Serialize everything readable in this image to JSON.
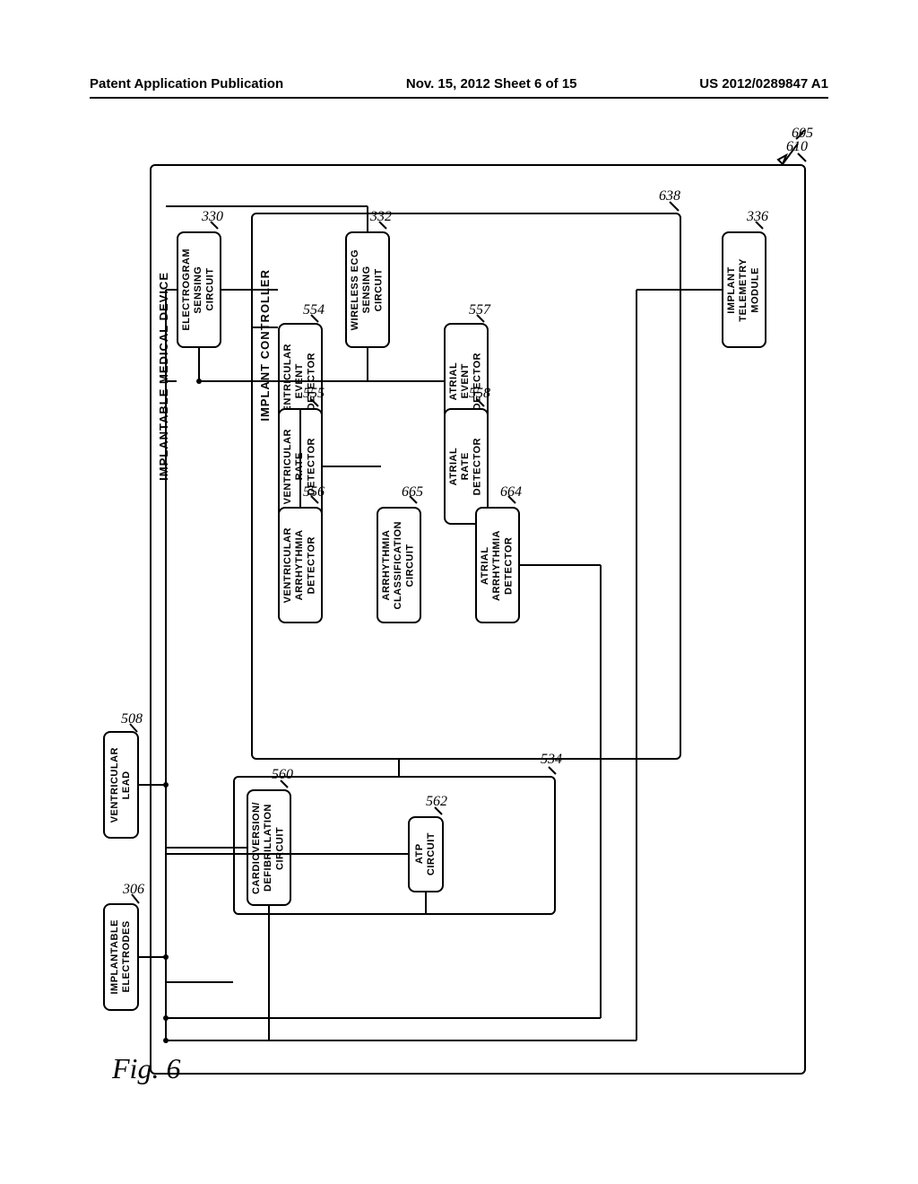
{
  "header": {
    "left": "Patent Application Publication",
    "center": "Nov. 15, 2012  Sheet 6 of 15",
    "right": "US 2012/0289847 A1"
  },
  "device_title": "IMPLANTABLE MEDICAL DEVICE",
  "controller_title": "IMPLANT CONTROLLER",
  "figure_label": "Fig. 6",
  "outer_ref": "605",
  "device_ref": "610",
  "controller_ref": "638",
  "boxes": {
    "ventricular_lead": {
      "label": "VENTRICULAR\nLEAD",
      "ref": "508"
    },
    "implantable_electrodes": {
      "label": "IMPLANTABLE\nELECTRODES",
      "ref": "306"
    },
    "electrogram_sensing": {
      "label": "ELECTROGRAM\nSENSING\nCIRCUIT",
      "ref": "330"
    },
    "wireless_ecg": {
      "label": "WIRELESS ECG\nSENSING\nCIRCUIT",
      "ref": "332"
    },
    "cardioversion": {
      "label": "CARDIOVERSION/\nDEFIBRILLATION\nCIRCUIT",
      "ref": "560"
    },
    "ventricular_event": {
      "label": "VENTRICULAR\nEVENT\nDETECTOR",
      "ref": "554"
    },
    "atrial_event": {
      "label": "ATRIAL\nEVENT\nDETECTOR",
      "ref": "557"
    },
    "atp_circuit": {
      "label": "ATP\nCIRCUIT",
      "ref": "562"
    },
    "ventricular_rate": {
      "label": "VENTRICULAR\nRATE\nDETECTOR",
      "ref": "555"
    },
    "atrial_rate": {
      "label": "ATRIAL\nRATE\nDETECTOR",
      "ref": "558"
    },
    "ventricular_arrhythmia": {
      "label": "VENTRICULAR\nARRHYTHMIA\nDETECTOR",
      "ref": "556"
    },
    "arrhythmia_classification": {
      "label": "ARRHYTHMIA\nCLASSIFICATION\nCIRCUIT",
      "ref": "665"
    },
    "atrial_arrhythmia": {
      "label": "ATRIAL\nARRHYTHMIA\nDETECTOR",
      "ref": "664"
    },
    "implant_telemetry": {
      "label": "IMPLANT\nTELEMETRY\nMODULE",
      "ref": "336"
    },
    "therapy_circuit_ref": "534"
  }
}
